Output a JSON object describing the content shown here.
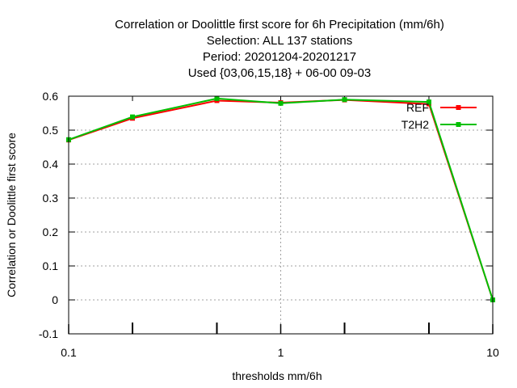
{
  "chart_data": {
    "type": "line",
    "title_lines": [
      "Correlation or Doolittle first score  for 6h Precipitation (mm/6h)",
      "Selection: ALL    137 stations",
      "Period: 20201204-20201217",
      "Used {03,06,15,18} + 06-00 09-03"
    ],
    "xlabel": "thresholds mm/6h",
    "ylabel": "Correlation or Doolittle first score",
    "x_scale": "log",
    "xlim": [
      0.1,
      10
    ],
    "ylim": [
      -0.1,
      0.6
    ],
    "x_ticks": [
      {
        "value": 0.1,
        "label": "0.1"
      },
      {
        "value": 1,
        "label": "1"
      },
      {
        "value": 10,
        "label": "10"
      }
    ],
    "x_minor_ticks": [
      0.2,
      0.5,
      2,
      5
    ],
    "y_ticks": [
      {
        "value": -0.1,
        "label": "-0.1"
      },
      {
        "value": 0,
        "label": "0"
      },
      {
        "value": 0.1,
        "label": "0.1"
      },
      {
        "value": 0.2,
        "label": "0.2"
      },
      {
        "value": 0.3,
        "label": "0.3"
      },
      {
        "value": 0.4,
        "label": "0.4"
      },
      {
        "value": 0.5,
        "label": "0.5"
      },
      {
        "value": 0.6,
        "label": "0.6"
      }
    ],
    "grid": true,
    "legend_position": "top-right",
    "series": [
      {
        "name": "REF",
        "color": "#ff0000",
        "x": [
          0.1,
          0.2,
          0.5,
          1,
          2,
          5,
          10
        ],
        "y": [
          0.471,
          0.535,
          0.587,
          0.581,
          0.589,
          0.577,
          0.0
        ]
      },
      {
        "name": "T2H2",
        "color": "#00c000",
        "x": [
          0.1,
          0.2,
          0.5,
          1,
          2,
          5,
          10
        ],
        "y": [
          0.472,
          0.539,
          0.593,
          0.579,
          0.59,
          0.583,
          0.0
        ]
      }
    ]
  }
}
